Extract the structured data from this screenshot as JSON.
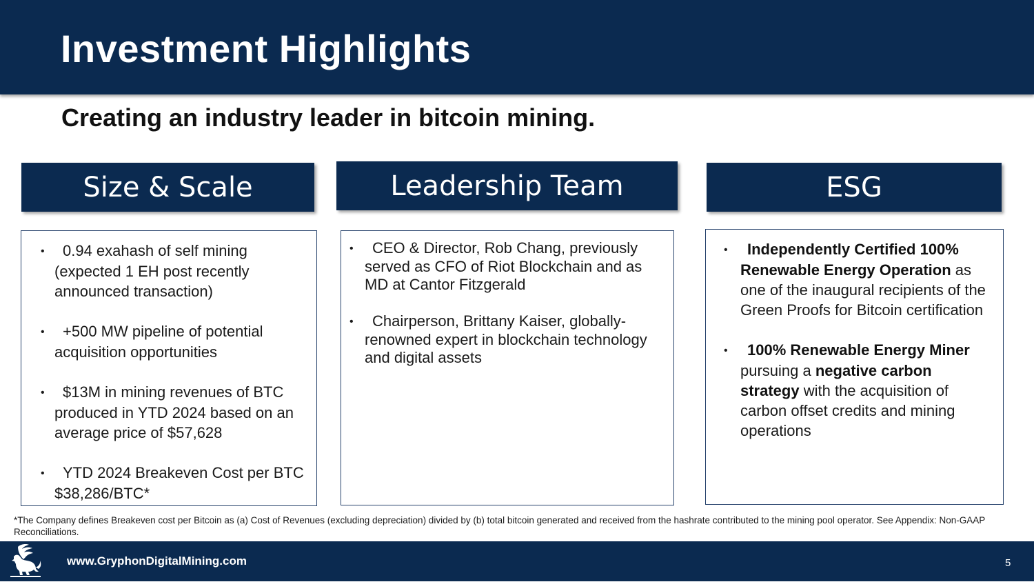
{
  "header": {
    "title": "Investment Highlights"
  },
  "subtitle": "Creating an industry leader in bitcoin mining.",
  "columns": [
    {
      "heading": "Size & Scale",
      "bullets": [
        "0.94 exahash of self mining (expected 1 EH post recently announced transaction)",
        "+500 MW pipeline of potential acquisition opportunities",
        "$13M in mining revenues of BTC produced in YTD 2024 based on an average price of $57,628",
        "YTD 2024 Breakeven Cost per BTC $38,286/BTC*"
      ]
    },
    {
      "heading": "Leadership Team",
      "bullets": [
        "CEO & Director, Rob Chang, previously served as CFO of Riot Blockchain and as MD at Cantor Fitzgerald",
        "Chairperson, Brittany Kaiser, globally-renowned expert in blockchain technology and digital assets"
      ]
    },
    {
      "heading": "ESG",
      "bullets": [
        {
          "bold1": "Independently Certified 100% Renewable Energy Operation",
          "text1": " as one of the inaugural recipients of the Green Proofs for Bitcoin certification"
        },
        {
          "bold1": "100% Renewable Energy Miner",
          "text1": " pursuing a ",
          "bold2": "negative carbon strategy",
          "text2": " with the acquisition of carbon offset credits and mining operations"
        }
      ]
    }
  ],
  "bullet_char": "•",
  "footnote": "*The Company defines Breakeven cost per Bitcoin as (a) Cost of Revenues (excluding depreciation) divided by (b) total bitcoin generated and received from the hashrate contributed to the mining pool operator.  See Appendix: Non-GAAP Reconciliations.",
  "footer": {
    "website": "www.GryphonDigitalMining.com",
    "page_number": "5",
    "logo_icon": "gryphon-logo-icon"
  },
  "colors": {
    "navy": "#0b2a50",
    "card_border": "#24406a"
  }
}
